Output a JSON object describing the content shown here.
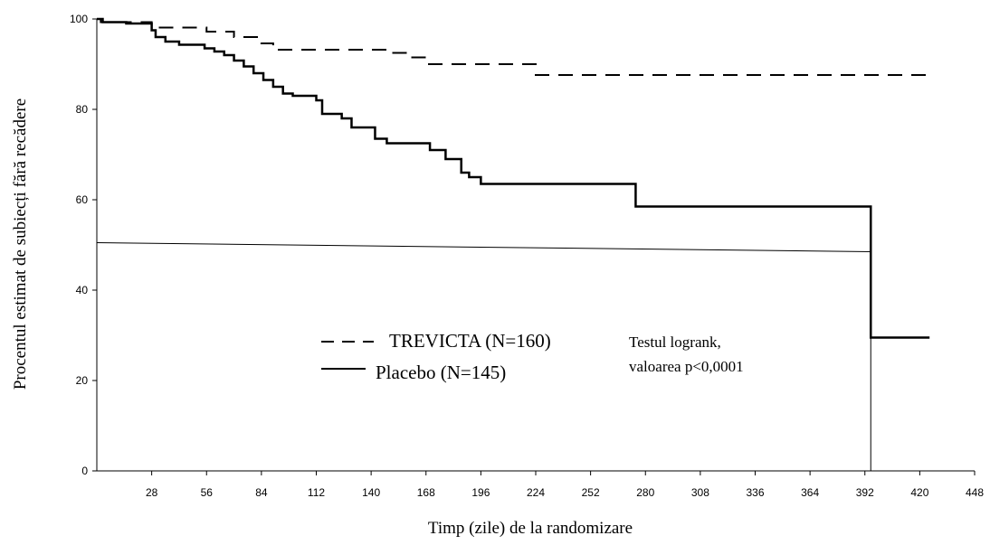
{
  "chart_data": {
    "type": "line",
    "ylabel": "Procentul estimat de subiecți fără recădere",
    "xlabel": "Timp (zile) de la randomizare",
    "xlim": [
      0,
      448
    ],
    "ylim": [
      0,
      100
    ],
    "x_ticks": [
      28,
      56,
      84,
      112,
      140,
      168,
      196,
      224,
      252,
      280,
      308,
      336,
      364,
      392,
      420,
      448
    ],
    "y_ticks": [
      0,
      20,
      40,
      60,
      80,
      100
    ],
    "grid": false,
    "legend_position": "center",
    "series": [
      {
        "name": "TREVICTA (N=160)",
        "style": "dashed",
        "color": "#000000",
        "steps": [
          [
            0,
            100
          ],
          [
            2,
            99.3
          ],
          [
            28,
            98.1
          ],
          [
            56,
            97.2
          ],
          [
            70,
            96
          ],
          [
            84,
            94.6
          ],
          [
            90,
            93.2
          ],
          [
            150,
            92.5
          ],
          [
            160,
            91.5
          ],
          [
            168,
            90
          ],
          [
            224,
            87.6
          ],
          [
            425,
            87.6
          ]
        ]
      },
      {
        "name": "Placebo (N=145)",
        "style": "solid",
        "color": "#000000",
        "steps": [
          [
            0,
            100
          ],
          [
            3,
            99.3
          ],
          [
            15,
            99
          ],
          [
            28,
            97.5
          ],
          [
            30,
            96
          ],
          [
            35,
            95
          ],
          [
            42,
            94.3
          ],
          [
            55,
            93.5
          ],
          [
            60,
            92.8
          ],
          [
            65,
            92
          ],
          [
            70,
            90.8
          ],
          [
            75,
            89.5
          ],
          [
            80,
            88
          ],
          [
            85,
            86.5
          ],
          [
            90,
            85
          ],
          [
            95,
            83.5
          ],
          [
            100,
            83
          ],
          [
            112,
            82
          ],
          [
            115,
            79
          ],
          [
            125,
            78
          ],
          [
            130,
            76
          ],
          [
            142,
            73.5
          ],
          [
            148,
            72.5
          ],
          [
            170,
            71
          ],
          [
            178,
            69
          ],
          [
            186,
            66
          ],
          [
            190,
            65
          ],
          [
            196,
            63.5
          ],
          [
            275,
            58.5
          ],
          [
            395,
            29.5
          ],
          [
            425,
            29.5
          ]
        ]
      }
    ],
    "reference_lines": [
      {
        "x1": 0,
        "y1": 50.5,
        "x2": 395,
        "y2": 48.5
      },
      {
        "x1": 395,
        "y1": 58.5,
        "x2": 395,
        "y2": 0
      }
    ],
    "annotations": [
      "Testul logrank,",
      "valoarea p<0,0001"
    ]
  }
}
